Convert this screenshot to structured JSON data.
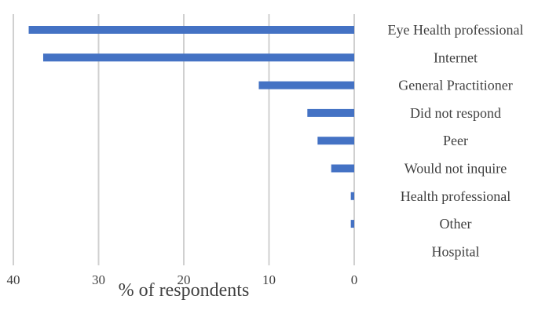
{
  "chart_data": {
    "type": "bar",
    "orientation": "horizontal",
    "x_axis_reversed": true,
    "categories": [
      "Eye Health professional",
      "Internet",
      "General Practitioner",
      "Did not respond",
      "Peer",
      "Would not inquire",
      "Health professional",
      "Other",
      "Hospital"
    ],
    "values": [
      38.2,
      36.5,
      11.2,
      5.5,
      4.3,
      2.7,
      0.4,
      0.4,
      0
    ],
    "xlabel": "% of respondents",
    "xlim": [
      0,
      40
    ],
    "xticks": [
      40,
      30,
      20,
      10,
      0
    ],
    "grid": "vertical",
    "bar_color": "#4472c4",
    "grid_color": "#d0d0d0"
  }
}
